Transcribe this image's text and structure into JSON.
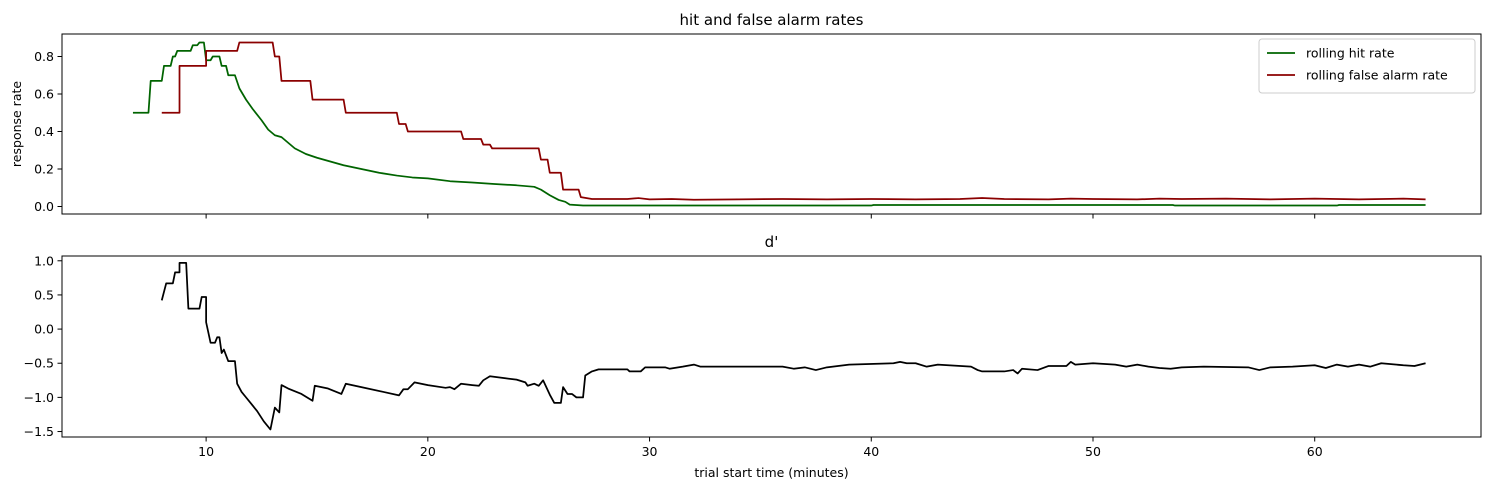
{
  "chart_data": [
    {
      "type": "line",
      "title": "hit and false alarm rates",
      "xlabel": "",
      "ylabel": "response rate",
      "xlim": [
        3.5,
        67.5
      ],
      "ylim": [
        -0.04,
        0.92
      ],
      "xticks": [
        10,
        20,
        30,
        40,
        50,
        60
      ],
      "xticklabels_visible": false,
      "yticks": [
        0.0,
        0.2,
        0.4,
        0.6,
        0.8
      ],
      "yticklabels": [
        "0.0",
        "0.2",
        "0.4",
        "0.6",
        "0.8"
      ],
      "legend": "top-right",
      "grid": false,
      "series": [
        {
          "name": "rolling hit rate",
          "color": "#006400",
          "points": [
            [
              6.7,
              0.5
            ],
            [
              7.4,
              0.5
            ],
            [
              7.5,
              0.67
            ],
            [
              8.0,
              0.67
            ],
            [
              8.1,
              0.75
            ],
            [
              8.4,
              0.75
            ],
            [
              8.5,
              0.8
            ],
            [
              8.6,
              0.8
            ],
            [
              8.7,
              0.83
            ],
            [
              9.3,
              0.83
            ],
            [
              9.4,
              0.86
            ],
            [
              9.6,
              0.86
            ],
            [
              9.7,
              0.875
            ],
            [
              9.9,
              0.875
            ],
            [
              10.0,
              0.78
            ],
            [
              10.2,
              0.78
            ],
            [
              10.3,
              0.8
            ],
            [
              10.6,
              0.8
            ],
            [
              10.7,
              0.75
            ],
            [
              10.9,
              0.75
            ],
            [
              11.0,
              0.7
            ],
            [
              11.3,
              0.7
            ],
            [
              11.5,
              0.63
            ],
            [
              11.8,
              0.57
            ],
            [
              12.1,
              0.52
            ],
            [
              12.5,
              0.46
            ],
            [
              12.8,
              0.41
            ],
            [
              13.1,
              0.38
            ],
            [
              13.4,
              0.37
            ],
            [
              13.7,
              0.34
            ],
            [
              14.0,
              0.31
            ],
            [
              14.5,
              0.28
            ],
            [
              15.0,
              0.26
            ],
            [
              15.6,
              0.24
            ],
            [
              16.2,
              0.22
            ],
            [
              17.0,
              0.2
            ],
            [
              17.8,
              0.18
            ],
            [
              18.6,
              0.165
            ],
            [
              19.3,
              0.155
            ],
            [
              20.0,
              0.15
            ],
            [
              21.0,
              0.135
            ],
            [
              22.0,
              0.128
            ],
            [
              23.0,
              0.12
            ],
            [
              24.0,
              0.113
            ],
            [
              24.8,
              0.105
            ],
            [
              25.1,
              0.09
            ],
            [
              25.5,
              0.06
            ],
            [
              25.9,
              0.035
            ],
            [
              26.2,
              0.025
            ],
            [
              26.4,
              0.01
            ],
            [
              27.0,
              0.005
            ],
            [
              40.0,
              0.005
            ],
            [
              40.1,
              0.008
            ],
            [
              53.6,
              0.008
            ],
            [
              53.7,
              0.005
            ],
            [
              61.0,
              0.005
            ],
            [
              61.1,
              0.008
            ],
            [
              65.0,
              0.008
            ]
          ]
        },
        {
          "name": "rolling false alarm rate",
          "color": "#8b0000",
          "points": [
            [
              8.0,
              0.5
            ],
            [
              8.8,
              0.5
            ],
            [
              8.8,
              0.75
            ],
            [
              10.0,
              0.75
            ],
            [
              10.0,
              0.83
            ],
            [
              11.4,
              0.83
            ],
            [
              11.5,
              0.875
            ],
            [
              13.0,
              0.875
            ],
            [
              13.1,
              0.8
            ],
            [
              13.3,
              0.8
            ],
            [
              13.4,
              0.67
            ],
            [
              14.7,
              0.67
            ],
            [
              14.8,
              0.57
            ],
            [
              16.2,
              0.57
            ],
            [
              16.3,
              0.5
            ],
            [
              18.6,
              0.5
            ],
            [
              18.7,
              0.44
            ],
            [
              19.0,
              0.44
            ],
            [
              19.1,
              0.4
            ],
            [
              21.5,
              0.4
            ],
            [
              21.6,
              0.36
            ],
            [
              22.4,
              0.36
            ],
            [
              22.5,
              0.33
            ],
            [
              22.8,
              0.33
            ],
            [
              22.9,
              0.31
            ],
            [
              25.0,
              0.31
            ],
            [
              25.1,
              0.25
            ],
            [
              25.4,
              0.25
            ],
            [
              25.5,
              0.18
            ],
            [
              26.0,
              0.18
            ],
            [
              26.1,
              0.09
            ],
            [
              26.8,
              0.09
            ],
            [
              26.9,
              0.05
            ],
            [
              27.4,
              0.04
            ],
            [
              29.0,
              0.04
            ],
            [
              29.5,
              0.045
            ],
            [
              30.0,
              0.038
            ],
            [
              31.0,
              0.04
            ],
            [
              32.0,
              0.036
            ],
            [
              34.0,
              0.038
            ],
            [
              36.0,
              0.04
            ],
            [
              38.0,
              0.038
            ],
            [
              40.0,
              0.04
            ],
            [
              42.0,
              0.038
            ],
            [
              44.0,
              0.04
            ],
            [
              45.0,
              0.045
            ],
            [
              46.0,
              0.04
            ],
            [
              48.0,
              0.038
            ],
            [
              49.0,
              0.042
            ],
            [
              50.0,
              0.04
            ],
            [
              52.0,
              0.038
            ],
            [
              53.0,
              0.042
            ],
            [
              54.0,
              0.04
            ],
            [
              56.0,
              0.042
            ],
            [
              58.0,
              0.038
            ],
            [
              60.0,
              0.042
            ],
            [
              62.0,
              0.038
            ],
            [
              64.0,
              0.042
            ],
            [
              65.0,
              0.038
            ]
          ]
        }
      ]
    },
    {
      "type": "line",
      "title": "d'",
      "xlabel": "trial start time (minutes)",
      "ylabel": "",
      "xlim": [
        3.5,
        67.5
      ],
      "ylim": [
        -1.58,
        1.07
      ],
      "xticks": [
        10,
        20,
        30,
        40,
        50,
        60
      ],
      "xticklabels": [
        "10",
        "20",
        "30",
        "40",
        "50",
        "60"
      ],
      "yticks": [
        -1.5,
        -1.0,
        -0.5,
        0.0,
        0.5,
        1.0
      ],
      "yticklabels": [
        "−1.5",
        "−1.0",
        "−0.5",
        "0.0",
        "0.5",
        "1.0"
      ],
      "grid": false,
      "series": [
        {
          "color": "#000000",
          "points": [
            [
              8.0,
              0.42
            ],
            [
              8.2,
              0.67
            ],
            [
              8.5,
              0.67
            ],
            [
              8.6,
              0.83
            ],
            [
              8.8,
              0.83
            ],
            [
              8.8,
              0.97
            ],
            [
              9.1,
              0.97
            ],
            [
              9.2,
              0.3
            ],
            [
              9.7,
              0.3
            ],
            [
              9.8,
              0.47
            ],
            [
              10.0,
              0.47
            ],
            [
              10.0,
              0.1
            ],
            [
              10.2,
              -0.2
            ],
            [
              10.4,
              -0.2
            ],
            [
              10.5,
              -0.12
            ],
            [
              10.6,
              -0.12
            ],
            [
              10.7,
              -0.35
            ],
            [
              10.8,
              -0.3
            ],
            [
              11.0,
              -0.47
            ],
            [
              11.3,
              -0.47
            ],
            [
              11.4,
              -0.8
            ],
            [
              11.6,
              -0.92
            ],
            [
              11.8,
              -1.0
            ],
            [
              12.0,
              -1.08
            ],
            [
              12.3,
              -1.2
            ],
            [
              12.6,
              -1.35
            ],
            [
              12.9,
              -1.47
            ],
            [
              13.1,
              -1.15
            ],
            [
              13.3,
              -1.22
            ],
            [
              13.4,
              -0.82
            ],
            [
              13.7,
              -0.87
            ],
            [
              14.3,
              -0.95
            ],
            [
              14.8,
              -1.05
            ],
            [
              14.9,
              -0.83
            ],
            [
              15.5,
              -0.87
            ],
            [
              16.1,
              -0.95
            ],
            [
              16.3,
              -0.8
            ],
            [
              17.0,
              -0.85
            ],
            [
              18.0,
              -0.92
            ],
            [
              18.7,
              -0.97
            ],
            [
              18.9,
              -0.88
            ],
            [
              19.1,
              -0.88
            ],
            [
              19.4,
              -0.78
            ],
            [
              20.0,
              -0.82
            ],
            [
              20.8,
              -0.86
            ],
            [
              21.0,
              -0.85
            ],
            [
              21.2,
              -0.88
            ],
            [
              21.5,
              -0.8
            ],
            [
              22.0,
              -0.82
            ],
            [
              22.3,
              -0.83
            ],
            [
              22.5,
              -0.75
            ],
            [
              22.8,
              -0.69
            ],
            [
              23.5,
              -0.72
            ],
            [
              24.0,
              -0.74
            ],
            [
              24.4,
              -0.78
            ],
            [
              24.5,
              -0.83
            ],
            [
              24.8,
              -0.8
            ],
            [
              25.0,
              -0.83
            ],
            [
              25.2,
              -0.75
            ],
            [
              25.5,
              -0.96
            ],
            [
              25.7,
              -1.08
            ],
            [
              26.0,
              -1.08
            ],
            [
              26.1,
              -0.85
            ],
            [
              26.3,
              -0.95
            ],
            [
              26.5,
              -0.95
            ],
            [
              26.7,
              -1.0
            ],
            [
              27.0,
              -1.0
            ],
            [
              27.1,
              -0.68
            ],
            [
              27.4,
              -0.62
            ],
            [
              27.7,
              -0.59
            ],
            [
              29.0,
              -0.59
            ],
            [
              29.1,
              -0.62
            ],
            [
              29.6,
              -0.62
            ],
            [
              29.8,
              -0.56
            ],
            [
              30.7,
              -0.56
            ],
            [
              30.9,
              -0.58
            ],
            [
              31.5,
              -0.55
            ],
            [
              32.0,
              -0.52
            ],
            [
              32.3,
              -0.55
            ],
            [
              34.0,
              -0.55
            ],
            [
              36.0,
              -0.55
            ],
            [
              36.5,
              -0.58
            ],
            [
              37.0,
              -0.56
            ],
            [
              37.5,
              -0.6
            ],
            [
              38.0,
              -0.56
            ],
            [
              39.0,
              -0.52
            ],
            [
              41.0,
              -0.5
            ],
            [
              41.3,
              -0.48
            ],
            [
              41.6,
              -0.5
            ],
            [
              42.0,
              -0.5
            ],
            [
              42.5,
              -0.55
            ],
            [
              43.0,
              -0.52
            ],
            [
              44.5,
              -0.55
            ],
            [
              44.8,
              -0.6
            ],
            [
              45.0,
              -0.62
            ],
            [
              46.0,
              -0.62
            ],
            [
              46.4,
              -0.6
            ],
            [
              46.6,
              -0.65
            ],
            [
              46.8,
              -0.58
            ],
            [
              47.5,
              -0.6
            ],
            [
              48.0,
              -0.54
            ],
            [
              48.8,
              -0.54
            ],
            [
              49.0,
              -0.48
            ],
            [
              49.2,
              -0.52
            ],
            [
              50.0,
              -0.5
            ],
            [
              51.0,
              -0.52
            ],
            [
              51.5,
              -0.55
            ],
            [
              52.0,
              -0.52
            ],
            [
              52.5,
              -0.55
            ],
            [
              53.0,
              -0.57
            ],
            [
              53.5,
              -0.58
            ],
            [
              54.0,
              -0.56
            ],
            [
              55.0,
              -0.55
            ],
            [
              57.0,
              -0.56
            ],
            [
              57.5,
              -0.6
            ],
            [
              58.0,
              -0.56
            ],
            [
              59.0,
              -0.55
            ],
            [
              60.0,
              -0.53
            ],
            [
              60.5,
              -0.57
            ],
            [
              61.0,
              -0.52
            ],
            [
              61.5,
              -0.55
            ],
            [
              62.0,
              -0.52
            ],
            [
              62.5,
              -0.55
            ],
            [
              63.0,
              -0.5
            ],
            [
              64.0,
              -0.53
            ],
            [
              64.5,
              -0.54
            ],
            [
              65.0,
              -0.5
            ]
          ]
        }
      ]
    }
  ]
}
